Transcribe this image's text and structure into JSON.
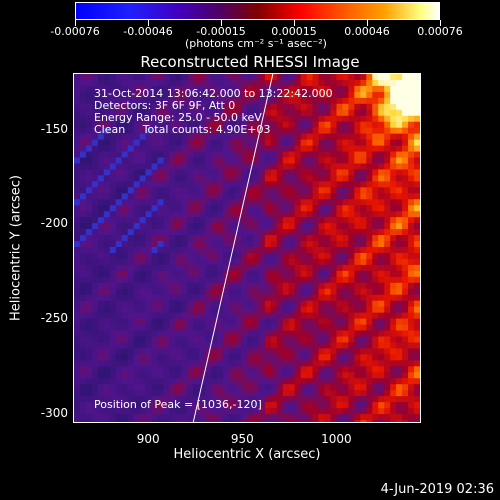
{
  "colorbar": {
    "tick_labels": [
      "-0.00076",
      "-0.00046",
      "-0.00015",
      "0.00015",
      "0.00046",
      "0.00076"
    ],
    "unit_label": "(photons cm⁻² s⁻¹ asec⁻²)"
  },
  "chart_data": {
    "type": "heatmap",
    "title": "Reconstructed RHESSI Image",
    "xlabel": "Heliocentric X (arcsec)",
    "ylabel": "Heliocentric Y (arcsec)",
    "xlim": [
      860,
      1045
    ],
    "ylim": [
      -305,
      -120
    ],
    "x_ticks": [
      "900",
      "950",
      "1000"
    ],
    "y_ticks": [
      "-150",
      "-200",
      "-250",
      "-300"
    ],
    "x_tick_values": [
      900,
      950,
      1000
    ],
    "y_tick_values": [
      -150,
      -200,
      -250,
      -300
    ],
    "annotations": [
      "31-Oct-2014 13:06:42.000 to 13:22:42.000",
      "Detectors: 3F 6F 9F, Att 0",
      "Energy Range: 25.0 - 50.0 keV",
      "Clean     Total counts: 4.90E+03",
      "Position of Peak = [1036,-120]"
    ],
    "colorscale": [
      "#0000ff",
      "#500060",
      "#ff0000",
      "#ffa000",
      "#ffffff"
    ]
  },
  "footer": {
    "date": "4-Jun-2019 02:36"
  }
}
